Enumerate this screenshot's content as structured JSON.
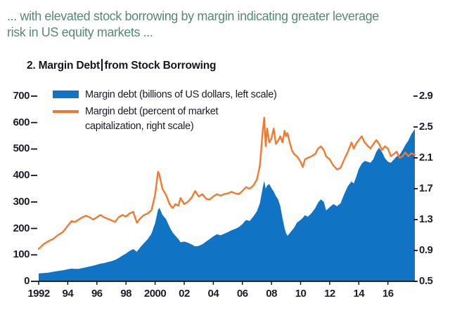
{
  "header": {
    "line1": "... with elevated stock borrowing by margin indicating greater leverage",
    "line2": "risk in US equity markets ...",
    "color": "#54897A"
  },
  "chart_title": {
    "text_before_cursor": "2. Margin Debt",
    "text_after_cursor": "from Stock Borrowing",
    "has_text_cursor": true
  },
  "legend": {
    "item1": {
      "label": "Margin debt (billions of US dollars, left scale)"
    },
    "item2": {
      "label_line1": "Margin debt (percent of market",
      "label_line2": "capitalization, right scale)"
    }
  },
  "colors": {
    "area_blue": "#1173C4",
    "line_orange": "#F4792E",
    "axis_ink": "#15151d",
    "tick_ink": "#1d1d2b"
  },
  "chart_data": {
    "type": "area",
    "title": "2. Margin Debt from Stock Borrowing",
    "x_axis": {
      "range": [
        1992,
        2017.85
      ],
      "tick_years": [
        1992,
        1994,
        1996,
        1998,
        2000,
        2002,
        2004,
        2006,
        2008,
        2010,
        2012,
        2014,
        2016
      ],
      "tick_labels": [
        "1992",
        "94",
        "96",
        "98",
        "2000",
        "02",
        "04",
        "06",
        "08",
        "10",
        "12",
        "14",
        "16"
      ]
    },
    "left_axis": {
      "ylabel": "Margin debt (billions of US dollars)",
      "ylim": [
        0,
        700
      ],
      "ticks": [
        0,
        100,
        200,
        300,
        400,
        500,
        600,
        700
      ]
    },
    "right_axis": {
      "ylabel": "Margin debt (percent of market capitalization)",
      "ylim": [
        0.5,
        2.9
      ],
      "ticks": [
        0.5,
        0.9,
        1.3,
        1.7,
        2.1,
        2.5,
        2.9
      ]
    },
    "grid": false,
    "legend_position": "top-left inside plot",
    "series": [
      {
        "name": "Margin debt (billions of US dollars, left scale)",
        "type": "area",
        "axis": "left",
        "color": "#1173C4",
        "points": [
          [
            1992.0,
            30
          ],
          [
            1992.33,
            31
          ],
          [
            1992.67,
            33
          ],
          [
            1993.0,
            36
          ],
          [
            1993.33,
            39
          ],
          [
            1993.67,
            42
          ],
          [
            1994.0,
            46
          ],
          [
            1994.25,
            48
          ],
          [
            1994.5,
            47
          ],
          [
            1994.75,
            47
          ],
          [
            1995.0,
            50
          ],
          [
            1995.25,
            53
          ],
          [
            1995.5,
            56
          ],
          [
            1995.75,
            59
          ],
          [
            1996.0,
            63
          ],
          [
            1996.25,
            67
          ],
          [
            1996.5,
            69
          ],
          [
            1996.75,
            73
          ],
          [
            1997.0,
            76
          ],
          [
            1997.25,
            81
          ],
          [
            1997.5,
            88
          ],
          [
            1997.75,
            97
          ],
          [
            1998.0,
            105
          ],
          [
            1998.25,
            115
          ],
          [
            1998.5,
            122
          ],
          [
            1998.75,
            112
          ],
          [
            1999.0,
            130
          ],
          [
            1999.25,
            145
          ],
          [
            1999.5,
            160
          ],
          [
            1999.75,
            180
          ],
          [
            2000.0,
            220
          ],
          [
            2000.2,
            270
          ],
          [
            2000.3,
            278
          ],
          [
            2000.5,
            252
          ],
          [
            2000.75,
            235
          ],
          [
            2001.0,
            205
          ],
          [
            2001.2,
            185
          ],
          [
            2001.4,
            172
          ],
          [
            2001.6,
            160
          ],
          [
            2001.75,
            148
          ],
          [
            2002.0,
            150
          ],
          [
            2002.25,
            146
          ],
          [
            2002.5,
            140
          ],
          [
            2002.75,
            132
          ],
          [
            2003.0,
            134
          ],
          [
            2003.25,
            140
          ],
          [
            2003.5,
            150
          ],
          [
            2003.75,
            160
          ],
          [
            2004.0,
            170
          ],
          [
            2004.25,
            178
          ],
          [
            2004.5,
            174
          ],
          [
            2004.75,
            180
          ],
          [
            2005.0,
            186
          ],
          [
            2005.25,
            193
          ],
          [
            2005.5,
            198
          ],
          [
            2005.75,
            205
          ],
          [
            2006.0,
            216
          ],
          [
            2006.25,
            232
          ],
          [
            2006.5,
            228
          ],
          [
            2006.75,
            245
          ],
          [
            2007.0,
            265
          ],
          [
            2007.2,
            295
          ],
          [
            2007.4,
            355
          ],
          [
            2007.5,
            380
          ],
          [
            2007.6,
            350
          ],
          [
            2007.7,
            362
          ],
          [
            2007.85,
            368
          ],
          [
            2008.0,
            352
          ],
          [
            2008.15,
            340
          ],
          [
            2008.3,
            322
          ],
          [
            2008.45,
            310
          ],
          [
            2008.6,
            285
          ],
          [
            2008.75,
            240
          ],
          [
            2008.9,
            200
          ],
          [
            2009.0,
            182
          ],
          [
            2009.1,
            172
          ],
          [
            2009.25,
            182
          ],
          [
            2009.4,
            192
          ],
          [
            2009.55,
            202
          ],
          [
            2009.75,
            222
          ],
          [
            2010.0,
            232
          ],
          [
            2010.15,
            240
          ],
          [
            2010.3,
            250
          ],
          [
            2010.5,
            244
          ],
          [
            2010.75,
            258
          ],
          [
            2011.0,
            276
          ],
          [
            2011.2,
            298
          ],
          [
            2011.4,
            310
          ],
          [
            2011.6,
            300
          ],
          [
            2011.75,
            268
          ],
          [
            2012.0,
            280
          ],
          [
            2012.25,
            292
          ],
          [
            2012.5,
            284
          ],
          [
            2012.75,
            295
          ],
          [
            2013.0,
            330
          ],
          [
            2013.25,
            360
          ],
          [
            2013.5,
            377
          ],
          [
            2013.65,
            370
          ],
          [
            2013.8,
            392
          ],
          [
            2014.0,
            425
          ],
          [
            2014.2,
            445
          ],
          [
            2014.4,
            455
          ],
          [
            2014.6,
            452
          ],
          [
            2014.8,
            448
          ],
          [
            2015.0,
            462
          ],
          [
            2015.2,
            490
          ],
          [
            2015.4,
            505
          ],
          [
            2015.6,
            488
          ],
          [
            2015.8,
            465
          ],
          [
            2016.0,
            452
          ],
          [
            2016.2,
            448
          ],
          [
            2016.4,
            460
          ],
          [
            2016.6,
            472
          ],
          [
            2016.8,
            478
          ],
          [
            2017.0,
            495
          ],
          [
            2017.2,
            515
          ],
          [
            2017.4,
            532
          ],
          [
            2017.6,
            555
          ],
          [
            2017.85,
            576
          ]
        ]
      },
      {
        "name": "Margin debt (percent of market capitalization, right scale)",
        "type": "line",
        "axis": "right",
        "color": "#F4792E",
        "points": [
          [
            1992.0,
            0.92
          ],
          [
            1992.33,
            0.98
          ],
          [
            1992.67,
            1.02
          ],
          [
            1993.0,
            1.05
          ],
          [
            1993.33,
            1.1
          ],
          [
            1993.67,
            1.14
          ],
          [
            1994.0,
            1.22
          ],
          [
            1994.25,
            1.28
          ],
          [
            1994.5,
            1.27
          ],
          [
            1994.75,
            1.3
          ],
          [
            1995.0,
            1.33
          ],
          [
            1995.25,
            1.35
          ],
          [
            1995.5,
            1.33
          ],
          [
            1995.75,
            1.3
          ],
          [
            1996.0,
            1.33
          ],
          [
            1996.25,
            1.36
          ],
          [
            1996.5,
            1.33
          ],
          [
            1996.75,
            1.31
          ],
          [
            1997.0,
            1.29
          ],
          [
            1997.25,
            1.27
          ],
          [
            1997.5,
            1.33
          ],
          [
            1997.75,
            1.36
          ],
          [
            1998.0,
            1.34
          ],
          [
            1998.25,
            1.38
          ],
          [
            1998.5,
            1.4
          ],
          [
            1998.75,
            1.26
          ],
          [
            1999.0,
            1.32
          ],
          [
            1999.25,
            1.36
          ],
          [
            1999.5,
            1.38
          ],
          [
            1999.75,
            1.42
          ],
          [
            2000.0,
            1.62
          ],
          [
            2000.2,
            1.92
          ],
          [
            2000.3,
            1.88
          ],
          [
            2000.5,
            1.7
          ],
          [
            2000.75,
            1.62
          ],
          [
            2001.0,
            1.5
          ],
          [
            2001.2,
            1.45
          ],
          [
            2001.4,
            1.5
          ],
          [
            2001.6,
            1.48
          ],
          [
            2001.75,
            1.58
          ],
          [
            2002.0,
            1.5
          ],
          [
            2002.25,
            1.53
          ],
          [
            2002.5,
            1.58
          ],
          [
            2002.75,
            1.67
          ],
          [
            2003.0,
            1.6
          ],
          [
            2003.25,
            1.63
          ],
          [
            2003.5,
            1.57
          ],
          [
            2003.75,
            1.56
          ],
          [
            2004.0,
            1.6
          ],
          [
            2004.25,
            1.63
          ],
          [
            2004.5,
            1.61
          ],
          [
            2004.75,
            1.63
          ],
          [
            2005.0,
            1.64
          ],
          [
            2005.25,
            1.66
          ],
          [
            2005.5,
            1.64
          ],
          [
            2005.75,
            1.63
          ],
          [
            2006.0,
            1.67
          ],
          [
            2006.25,
            1.72
          ],
          [
            2006.5,
            1.7
          ],
          [
            2006.75,
            1.74
          ],
          [
            2007.0,
            1.82
          ],
          [
            2007.2,
            2.0
          ],
          [
            2007.4,
            2.45
          ],
          [
            2007.5,
            2.62
          ],
          [
            2007.6,
            2.25
          ],
          [
            2007.7,
            2.48
          ],
          [
            2007.85,
            2.3
          ],
          [
            2008.0,
            2.35
          ],
          [
            2008.15,
            2.48
          ],
          [
            2008.3,
            2.28
          ],
          [
            2008.45,
            2.32
          ],
          [
            2008.6,
            2.38
          ],
          [
            2008.75,
            2.3
          ],
          [
            2008.9,
            2.45
          ],
          [
            2009.0,
            2.38
          ],
          [
            2009.1,
            2.42
          ],
          [
            2009.25,
            2.3
          ],
          [
            2009.4,
            2.2
          ],
          [
            2009.55,
            2.15
          ],
          [
            2009.75,
            2.12
          ],
          [
            2010.0,
            2.05
          ],
          [
            2010.15,
            1.98
          ],
          [
            2010.3,
            2.08
          ],
          [
            2010.5,
            2.1
          ],
          [
            2010.75,
            2.12
          ],
          [
            2011.0,
            2.15
          ],
          [
            2011.2,
            2.22
          ],
          [
            2011.4,
            2.25
          ],
          [
            2011.6,
            2.2
          ],
          [
            2011.75,
            2.12
          ],
          [
            2012.0,
            2.08
          ],
          [
            2012.25,
            2.0
          ],
          [
            2012.5,
            1.95
          ],
          [
            2012.75,
            1.97
          ],
          [
            2013.0,
            2.08
          ],
          [
            2013.25,
            2.18
          ],
          [
            2013.5,
            2.3
          ],
          [
            2013.65,
            2.22
          ],
          [
            2013.8,
            2.28
          ],
          [
            2014.0,
            2.33
          ],
          [
            2014.2,
            2.38
          ],
          [
            2014.4,
            2.3
          ],
          [
            2014.6,
            2.26
          ],
          [
            2014.8,
            2.22
          ],
          [
            2015.0,
            2.28
          ],
          [
            2015.2,
            2.33
          ],
          [
            2015.4,
            2.28
          ],
          [
            2015.6,
            2.2
          ],
          [
            2015.8,
            2.25
          ],
          [
            2016.0,
            2.22
          ],
          [
            2016.2,
            2.12
          ],
          [
            2016.4,
            2.15
          ],
          [
            2016.6,
            2.18
          ],
          [
            2016.8,
            2.1
          ],
          [
            2017.0,
            2.12
          ],
          [
            2017.2,
            2.17
          ],
          [
            2017.4,
            2.12
          ],
          [
            2017.6,
            2.16
          ],
          [
            2017.85,
            2.14
          ]
        ]
      }
    ]
  }
}
